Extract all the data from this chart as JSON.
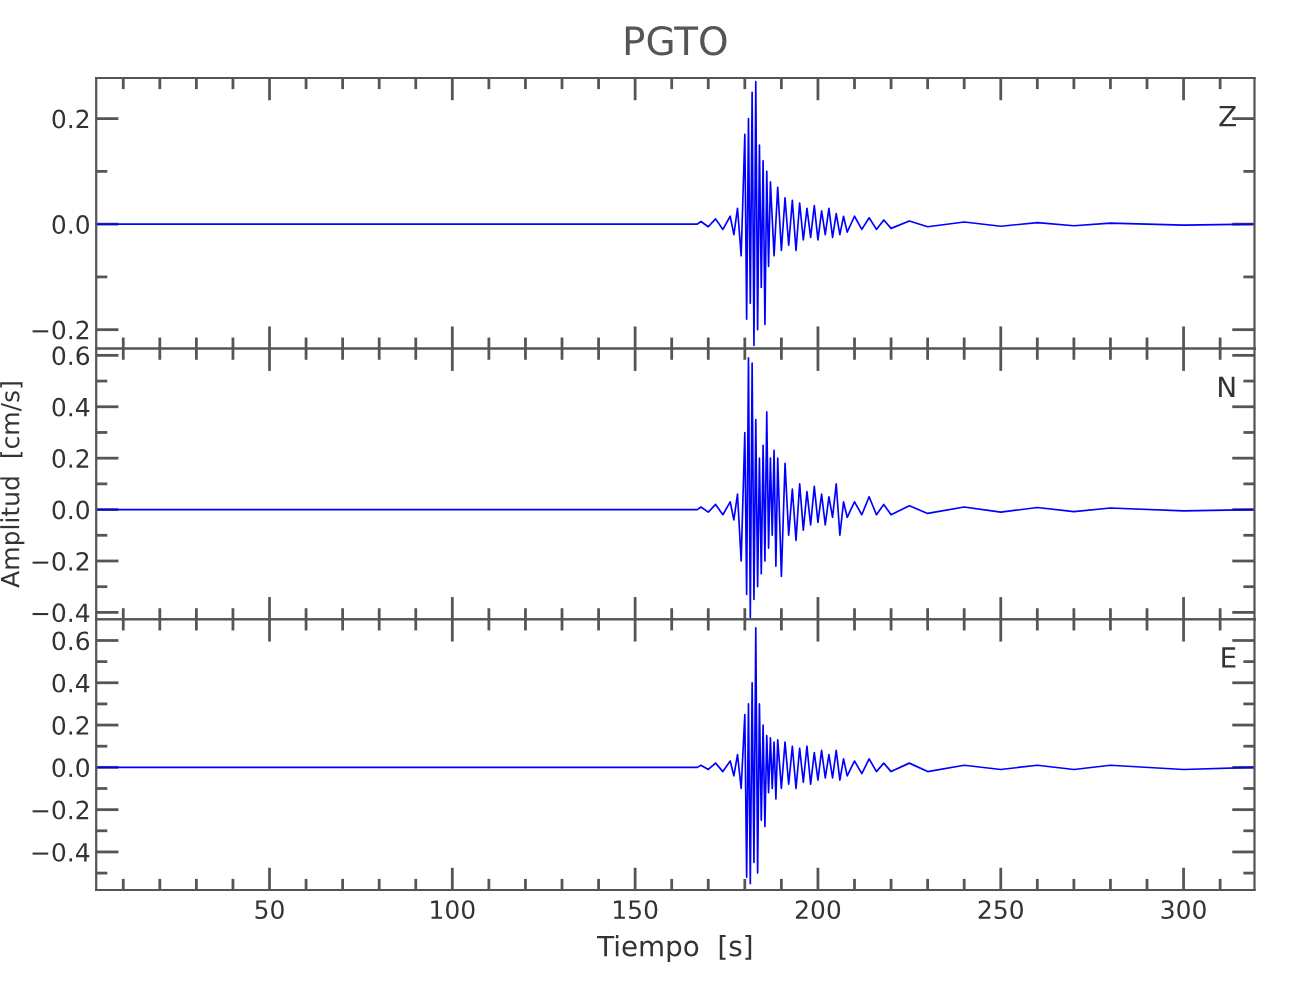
{
  "chart_data": [
    {
      "type": "line",
      "title": "PGTO",
      "annotations": [
        "Z"
      ],
      "tick_labels": "y",
      "xlim": [
        2.6,
        319.4
      ],
      "ylim": [
        -0.236,
        0.277
      ],
      "yticks": [
        {
          "value": -0.2,
          "label": "−0.2"
        },
        {
          "value": -0.1,
          "label": null
        },
        {
          "value": 0.0,
          "label": "0.0"
        },
        {
          "value": 0.1,
          "label": null
        },
        {
          "value": 0.2,
          "label": "0.2"
        }
      ],
      "series": [
        {
          "color": "#0000ff",
          "x": [
            3,
            100,
            167,
            168,
            170,
            172,
            174,
            176,
            177,
            178,
            179,
            180,
            180.5,
            181,
            181.5,
            182,
            182.5,
            183,
            183.5,
            184,
            184.5,
            185,
            185.5,
            186,
            186.5,
            187,
            188,
            189,
            190,
            191,
            192,
            193,
            194,
            195,
            196,
            197,
            198,
            199,
            200,
            201,
            202,
            203,
            204,
            205,
            206,
            207,
            208,
            210,
            212,
            214,
            216,
            218,
            220,
            225,
            230,
            240,
            250,
            260,
            270,
            280,
            300,
            319
          ],
          "values": [
            0,
            0,
            0,
            0.005,
            -0.005,
            0.01,
            -0.01,
            0.015,
            -0.02,
            0.03,
            -0.06,
            0.17,
            -0.18,
            0.2,
            -0.15,
            0.25,
            -0.23,
            0.27,
            -0.2,
            0.15,
            -0.12,
            0.12,
            -0.19,
            0.1,
            -0.08,
            0.08,
            -0.06,
            0.07,
            -0.05,
            0.05,
            -0.04,
            0.045,
            -0.05,
            0.04,
            -0.03,
            0.03,
            -0.025,
            0.035,
            -0.03,
            0.025,
            -0.02,
            0.03,
            -0.025,
            0.02,
            -0.02,
            0.015,
            -0.015,
            0.015,
            -0.01,
            0.012,
            -0.01,
            0.008,
            -0.008,
            0.006,
            -0.005,
            0.004,
            -0.004,
            0.003,
            -0.003,
            0.002,
            -0.002,
            0
          ]
        }
      ]
    },
    {
      "type": "line",
      "ylabel": "Amplitud  [cm/s]",
      "annotations": [
        "N"
      ],
      "tick_labels": "y",
      "xlim": [
        2.6,
        319.4
      ],
      "ylim": [
        -0.427,
        0.626
      ],
      "yticks": [
        {
          "value": -0.4,
          "label": "−0.4"
        },
        {
          "value": -0.3,
          "label": null
        },
        {
          "value": -0.2,
          "label": "−0.2"
        },
        {
          "value": -0.1,
          "label": null
        },
        {
          "value": 0.0,
          "label": "0.0"
        },
        {
          "value": 0.1,
          "label": null
        },
        {
          "value": 0.2,
          "label": "0.2"
        },
        {
          "value": 0.3,
          "label": null
        },
        {
          "value": 0.4,
          "label": "0.4"
        },
        {
          "value": 0.5,
          "label": null
        },
        {
          "value": 0.6,
          "label": "0.6"
        }
      ],
      "series": [
        {
          "color": "#0000ff",
          "x": [
            3,
            100,
            167,
            168,
            170,
            172,
            174,
            176,
            177,
            178,
            179,
            180,
            180.5,
            181,
            181.5,
            182,
            182.5,
            183,
            183.5,
            184,
            184.5,
            185,
            185.5,
            186,
            186.5,
            187,
            187.5,
            188,
            188.5,
            189,
            190,
            191,
            192,
            193,
            194,
            195,
            196,
            197,
            198,
            199,
            200,
            201,
            202,
            203,
            204,
            205,
            206,
            207,
            208,
            210,
            212,
            214,
            216,
            218,
            220,
            225,
            230,
            240,
            250,
            260,
            270,
            280,
            300,
            319
          ],
          "values": [
            0,
            0,
            0,
            0.01,
            -0.01,
            0.02,
            -0.02,
            0.03,
            -0.04,
            0.06,
            -0.2,
            0.3,
            -0.33,
            0.59,
            -0.42,
            0.57,
            -0.35,
            0.35,
            -0.3,
            0.2,
            -0.25,
            0.25,
            -0.2,
            0.38,
            -0.15,
            0.2,
            -0.1,
            0.23,
            -0.22,
            0.2,
            -0.26,
            0.18,
            -0.1,
            0.08,
            -0.12,
            0.1,
            -0.08,
            0.07,
            -0.06,
            0.09,
            -0.05,
            0.06,
            -0.06,
            0.05,
            -0.03,
            0.1,
            -0.1,
            0.03,
            -0.03,
            0.03,
            -0.02,
            0.05,
            -0.02,
            0.02,
            -0.02,
            0.015,
            -0.015,
            0.01,
            -0.01,
            0.008,
            -0.008,
            0.006,
            -0.005,
            0
          ]
        }
      ]
    },
    {
      "type": "line",
      "xlabel": "Tiempo  [s]",
      "annotations": [
        "E"
      ],
      "xlim": [
        2.6,
        319.4
      ],
      "ylim": [
        -0.58,
        0.7
      ],
      "xticks": [
        {
          "value": 10,
          "label": null
        },
        {
          "value": 20,
          "label": null
        },
        {
          "value": 30,
          "label": null
        },
        {
          "value": 40,
          "label": null
        },
        {
          "value": 50,
          "label": "50"
        },
        {
          "value": 60,
          "label": null
        },
        {
          "value": 70,
          "label": null
        },
        {
          "value": 80,
          "label": null
        },
        {
          "value": 90,
          "label": null
        },
        {
          "value": 100,
          "label": "100"
        },
        {
          "value": 110,
          "label": null
        },
        {
          "value": 120,
          "label": null
        },
        {
          "value": 130,
          "label": null
        },
        {
          "value": 140,
          "label": null
        },
        {
          "value": 150,
          "label": "150"
        },
        {
          "value": 160,
          "label": null
        },
        {
          "value": 170,
          "label": null
        },
        {
          "value": 180,
          "label": null
        },
        {
          "value": 190,
          "label": null
        },
        {
          "value": 200,
          "label": "200"
        },
        {
          "value": 210,
          "label": null
        },
        {
          "value": 220,
          "label": null
        },
        {
          "value": 230,
          "label": null
        },
        {
          "value": 240,
          "label": null
        },
        {
          "value": 250,
          "label": "250"
        },
        {
          "value": 260,
          "label": null
        },
        {
          "value": 270,
          "label": null
        },
        {
          "value": 280,
          "label": null
        },
        {
          "value": 290,
          "label": null
        },
        {
          "value": 300,
          "label": "300"
        },
        {
          "value": 310,
          "label": null
        }
      ],
      "yticks": [
        {
          "value": -0.5,
          "label": null
        },
        {
          "value": -0.4,
          "label": "−0.4"
        },
        {
          "value": -0.3,
          "label": null
        },
        {
          "value": -0.2,
          "label": "−0.2"
        },
        {
          "value": -0.1,
          "label": null
        },
        {
          "value": 0.0,
          "label": "0.0"
        },
        {
          "value": 0.1,
          "label": null
        },
        {
          "value": 0.2,
          "label": "0.2"
        },
        {
          "value": 0.3,
          "label": null
        },
        {
          "value": 0.4,
          "label": "0.4"
        },
        {
          "value": 0.5,
          "label": null
        },
        {
          "value": 0.6,
          "label": "0.6"
        }
      ],
      "series": [
        {
          "color": "#0000ff",
          "x": [
            3,
            100,
            167,
            168,
            170,
            172,
            174,
            176,
            177,
            178,
            179,
            180,
            180.5,
            181,
            181.5,
            182,
            182.5,
            183,
            183.5,
            184,
            184.5,
            185,
            185.5,
            186,
            186.5,
            187,
            187.5,
            188,
            188.5,
            189,
            190,
            191,
            192,
            193,
            194,
            195,
            196,
            197,
            198,
            199,
            200,
            201,
            202,
            203,
            204,
            205,
            206,
            207,
            208,
            210,
            212,
            214,
            216,
            218,
            220,
            225,
            230,
            240,
            250,
            260,
            270,
            280,
            300,
            319
          ],
          "values": [
            0,
            0,
            0,
            0.01,
            -0.01,
            0.02,
            -0.02,
            0.03,
            -0.04,
            0.06,
            -0.1,
            0.25,
            -0.52,
            0.3,
            -0.55,
            0.4,
            -0.45,
            0.66,
            -0.5,
            0.3,
            -0.25,
            0.2,
            -0.28,
            0.15,
            -0.12,
            0.14,
            -0.1,
            0.12,
            -0.15,
            0.13,
            -0.1,
            0.12,
            -0.08,
            0.1,
            -0.1,
            0.09,
            -0.07,
            0.1,
            -0.08,
            0.07,
            -0.06,
            0.08,
            -0.05,
            0.06,
            -0.05,
            0.08,
            -0.06,
            0.04,
            -0.04,
            0.03,
            -0.03,
            0.04,
            -0.02,
            0.02,
            -0.02,
            0.02,
            -0.02,
            0.01,
            -0.01,
            0.01,
            -0.01,
            0.01,
            -0.01,
            0
          ]
        }
      ]
    }
  ]
}
